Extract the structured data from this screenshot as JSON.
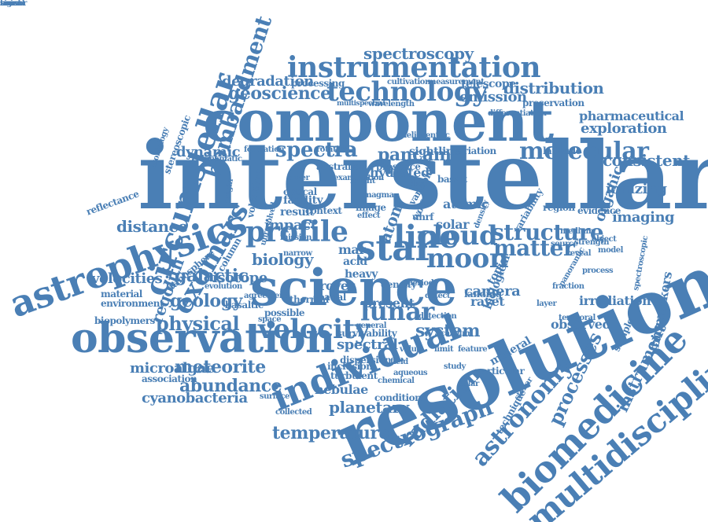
{
  "color": "#4a7fb5",
  "words": [
    "interstellar",
    "component",
    "resolution",
    "absorption",
    "science",
    "observation",
    "astrophysics",
    "circumstellar",
    "biomedicine",
    "multidisciplinary",
    "individual",
    "instrumentation",
    "technology",
    "profile",
    "velocity",
    "star",
    "line",
    "cloud",
    "moon",
    "exomars",
    "bombardment",
    "molecular",
    "structure",
    "matter",
    "astronomy",
    "spectrograph",
    "radiation",
    "lunar",
    "geoscience",
    "spectroscopy",
    "abundance",
    "meteorite",
    "temperature",
    "cyanobacteria",
    "microalgae",
    "physical",
    "geology",
    "galactic",
    "regolith",
    "distance",
    "velocities",
    "degradation",
    "distribution",
    "emission",
    "spectra",
    "pancam",
    "dynamic",
    "biology",
    "isotope",
    "system",
    "spectral",
    "planetary",
    "nebulae",
    "processes",
    "instrument",
    "biomarkers",
    "ionizing",
    "imaging",
    "consistent",
    "exploration",
    "pharmaceutical",
    "organic",
    "irradiation",
    "observed",
    "camera",
    "solar",
    "atomic",
    "atom",
    "impact",
    "rover",
    "mar",
    "acid",
    "heavy",
    "ravet",
    "mineral",
    "telescope",
    "preservation",
    "processing",
    "cultivation",
    "measurement",
    "multispectral",
    "wavelength",
    "facility",
    "result",
    "reflectance",
    "environment",
    "material",
    "biopolymers",
    "stereoscopic",
    "exobiology",
    "atmosphere",
    "basaltic",
    "thermal",
    "possible",
    "spatial",
    "narrow",
    "optical",
    "lower",
    "sightline",
    "variation",
    "hydrated",
    "rotation",
    "formation",
    "kinematic",
    "volcanism",
    "australian",
    "presence",
    "variable",
    "basalt",
    "landing",
    "region",
    "evidence",
    "variability",
    "latitude",
    "detection",
    "calcium",
    "feature",
    "particular",
    "dispersion",
    "inclusion",
    "turbulent",
    "condition",
    "technique",
    "association",
    "survivability",
    "general",
    "density",
    "image",
    "effect",
    "space",
    "context",
    "origin",
    "unresolved",
    "column",
    "evolution",
    "agreement",
    "biological",
    "present",
    "uhrf",
    "density",
    "wolf",
    "topic",
    "stellar",
    "sample",
    "panoramic",
    "spectroscopic",
    "temporal",
    "differentiation",
    "heliocentric",
    "examination",
    "bright",
    "magma",
    "dust",
    "period",
    "detect",
    "value",
    "limit",
    "study",
    "polar",
    "chemical",
    "aqueous",
    "field",
    "mission",
    "surface",
    "collected",
    "source",
    "fraction",
    "layer",
    "medium",
    "reveal",
    "strength",
    "process",
    "object",
    "model",
    "sensor",
    "signal",
    "noise",
    "band"
  ]
}
